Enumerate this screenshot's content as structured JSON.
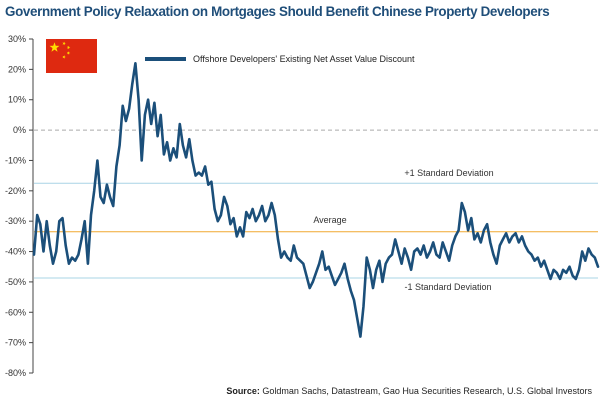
{
  "title": "Government Policy Relaxation on Mortgages Should Benefit Chinese Property Developers",
  "source_label": "Source:",
  "source_text": "Goldman Sachs, Datastream, Gao Hua Securities Research, U.S. Global Investors",
  "colors": {
    "title": "#1f4e79",
    "series": "#1b4f7a",
    "std_line": "#a9d4e6",
    "average_line": "#f0a830",
    "zero_line": "#aaaaaa",
    "flag_red": "#de2910",
    "flag_star": "#ffde00"
  },
  "chart_data": {
    "type": "line",
    "title": "Government Policy Relaxation on Mortgages Should Benefit Chinese Property Developers",
    "xlabel": "",
    "ylabel": "",
    "ylim": [
      -0.8,
      0.3
    ],
    "y_ticks": [
      "30%",
      "20%",
      "10%",
      "0%",
      "-10%",
      "-20%",
      "-30%",
      "-40%",
      "-50%",
      "-60%",
      "-70%",
      "-80%"
    ],
    "y_tick_values": [
      0.3,
      0.2,
      0.1,
      0.0,
      -0.1,
      -0.2,
      -0.3,
      -0.4,
      -0.5,
      -0.6,
      -0.7,
      -0.8
    ],
    "grid": false,
    "legend_position": "top-left",
    "icon": "china-flag-icon",
    "series": [
      {
        "name": "Offshore Developers' Existing Net Asset Value Discount",
        "values": [
          -0.41,
          -0.28,
          -0.31,
          -0.4,
          -0.3,
          -0.38,
          -0.44,
          -0.4,
          -0.3,
          -0.29,
          -0.38,
          -0.44,
          -0.42,
          -0.43,
          -0.41,
          -0.36,
          -0.3,
          -0.44,
          -0.28,
          -0.2,
          -0.1,
          -0.22,
          -0.24,
          -0.18,
          -0.22,
          -0.25,
          -0.12,
          -0.05,
          0.08,
          0.03,
          0.07,
          0.15,
          0.22,
          0.1,
          -0.1,
          0.05,
          0.1,
          0.02,
          0.09,
          -0.02,
          0.05,
          -0.08,
          -0.04,
          -0.1,
          -0.06,
          -0.09,
          0.02,
          -0.05,
          -0.09,
          -0.03,
          -0.1,
          -0.15,
          -0.14,
          -0.15,
          -0.12,
          -0.18,
          -0.17,
          -0.26,
          -0.3,
          -0.28,
          -0.22,
          -0.25,
          -0.31,
          -0.29,
          -0.35,
          -0.32,
          -0.35,
          -0.27,
          -0.29,
          -0.26,
          -0.3,
          -0.28,
          -0.25,
          -0.3,
          -0.28,
          -0.24,
          -0.28,
          -0.36,
          -0.42,
          -0.4,
          -0.42,
          -0.43,
          -0.38,
          -0.42,
          -0.43,
          -0.44,
          -0.48,
          -0.52,
          -0.5,
          -0.47,
          -0.44,
          -0.4,
          -0.46,
          -0.45,
          -0.48,
          -0.51,
          -0.49,
          -0.47,
          -0.44,
          -0.49,
          -0.53,
          -0.56,
          -0.62,
          -0.68,
          -0.58,
          -0.42,
          -0.46,
          -0.52,
          -0.46,
          -0.43,
          -0.5,
          -0.44,
          -0.42,
          -0.41,
          -0.36,
          -0.4,
          -0.44,
          -0.39,
          -0.42,
          -0.46,
          -0.4,
          -0.39,
          -0.41,
          -0.38,
          -0.42,
          -0.4,
          -0.37,
          -0.41,
          -0.42,
          -0.37,
          -0.4,
          -0.43,
          -0.38,
          -0.35,
          -0.33,
          -0.24,
          -0.27,
          -0.33,
          -0.29,
          -0.36,
          -0.34,
          -0.37,
          -0.33,
          -0.31,
          -0.37,
          -0.41,
          -0.44,
          -0.38,
          -0.36,
          -0.34,
          -0.37,
          -0.35,
          -0.34,
          -0.37,
          -0.35,
          -0.38,
          -0.4,
          -0.41,
          -0.43,
          -0.42,
          -0.45,
          -0.43,
          -0.46,
          -0.49,
          -0.46,
          -0.47,
          -0.49,
          -0.46,
          -0.47,
          -0.45,
          -0.48,
          -0.49,
          -0.46,
          -0.4,
          -0.43,
          -0.39,
          -0.41,
          -0.42,
          -0.45
        ]
      }
    ],
    "reference_lines": [
      {
        "label": "+1 Standard Deviation",
        "value": -0.175,
        "style": "std"
      },
      {
        "label": "Average",
        "value": -0.335,
        "style": "average"
      },
      {
        "label": "-1 Standard Deviation",
        "value": -0.487,
        "style": "std"
      },
      {
        "label": "",
        "value": 0.0,
        "style": "zero"
      }
    ]
  }
}
